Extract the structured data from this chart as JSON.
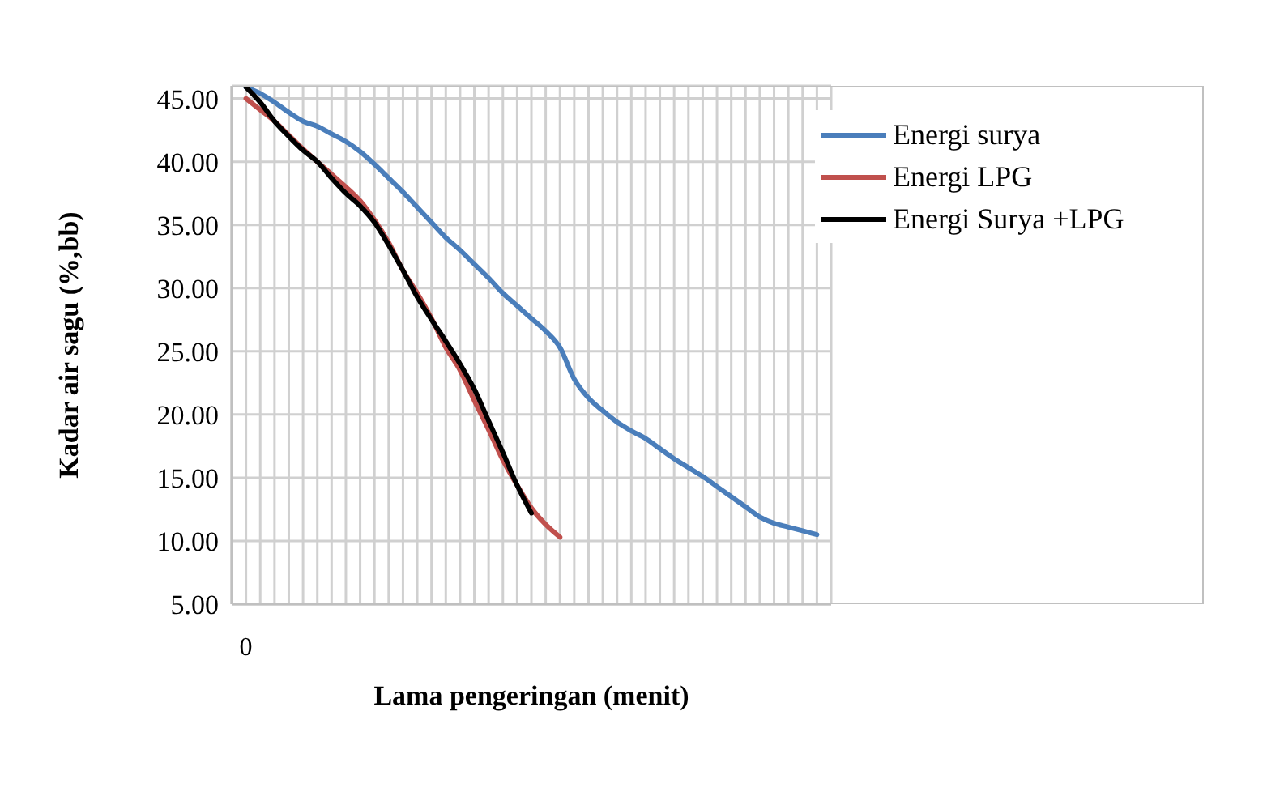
{
  "chart_data": {
    "type": "line",
    "xlabel": "Lama pengeringan (menit)",
    "ylabel": "Kadar air  sagu (%,bb)",
    "categories": [
      "0",
      null,
      null,
      null,
      null,
      null,
      null,
      null,
      null,
      null,
      null,
      null,
      null,
      null,
      null,
      null,
      null,
      null,
      null,
      null,
      null,
      null,
      null,
      null,
      null,
      null,
      null,
      null,
      null,
      null,
      null,
      null,
      null,
      null,
      null,
      null,
      null,
      null,
      null,
      null,
      null
    ],
    "series": [
      {
        "name": "Energi surya",
        "color": "#4a7ebb",
        "values": [
          45.9,
          45.4,
          44.7,
          43.9,
          43.2,
          42.8,
          42.2,
          41.6,
          40.8,
          39.8,
          38.7,
          37.6,
          36.4,
          35.2,
          34.0,
          33.0,
          31.9,
          30.8,
          29.6,
          28.6,
          27.6,
          26.6,
          25.3,
          22.8,
          21.3,
          20.3,
          19.4,
          18.7,
          18.1,
          17.3,
          16.5,
          15.8,
          15.1,
          14.3,
          13.5,
          12.7,
          11.9,
          11.4,
          11.1,
          10.8,
          10.5
        ]
      },
      {
        "name": "Energi LPG",
        "color": "#c0504d",
        "values": [
          45.0,
          44.1,
          43.2,
          42.1,
          41.0,
          40.0,
          39.0,
          38.0,
          36.9,
          35.4,
          33.6,
          31.4,
          29.6,
          27.6,
          25.3,
          23.5,
          21.1,
          18.8,
          16.4,
          14.4,
          12.6,
          11.3,
          10.3,
          null,
          null,
          null,
          null,
          null,
          null,
          null,
          null,
          null,
          null,
          null,
          null,
          null,
          null,
          null,
          null,
          null,
          null
        ]
      },
      {
        "name": "Energi Surya +LPG",
        "color": "#000000",
        "values": [
          45.9,
          44.7,
          43.2,
          42.0,
          40.9,
          40.0,
          38.7,
          37.5,
          36.5,
          35.2,
          33.4,
          31.4,
          29.3,
          27.5,
          25.8,
          24.0,
          22.0,
          19.5,
          17.0,
          14.4,
          12.2,
          null,
          null,
          null,
          null,
          null,
          null,
          null,
          null,
          null,
          null,
          null,
          null,
          null,
          null,
          null,
          null,
          null,
          null,
          null,
          null
        ]
      }
    ],
    "ylim": [
      5,
      46
    ],
    "yticks": [
      {
        "value": 5,
        "label": "5.00"
      },
      {
        "value": 10,
        "label": "10.00"
      },
      {
        "value": 15,
        "label": "15.00"
      },
      {
        "value": 20,
        "label": "20.00"
      },
      {
        "value": 25,
        "label": "25.00"
      },
      {
        "value": 30,
        "label": "30.00"
      },
      {
        "value": 35,
        "label": "35.00"
      },
      {
        "value": 40,
        "label": "40.00"
      },
      {
        "value": 45,
        "label": "45.00"
      }
    ],
    "grid": true,
    "legend": "top right",
    "marker": "none",
    "line_style": "solid"
  }
}
